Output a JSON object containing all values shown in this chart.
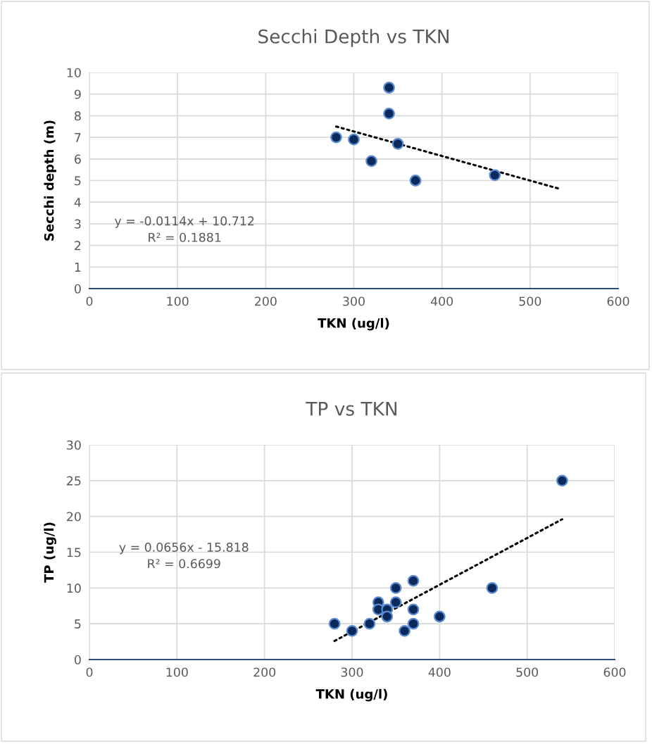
{
  "chart_data": [
    {
      "type": "scatter",
      "title": "Secchi Depth vs TKN",
      "xlabel": "TKN (ug/l)",
      "ylabel": "Secchi depth (m)",
      "xlim": [
        0,
        600
      ],
      "ylim": [
        0,
        10
      ],
      "xticks": [
        0,
        100,
        200,
        300,
        400,
        500,
        600
      ],
      "yticks": [
        0,
        1,
        2,
        3,
        4,
        5,
        6,
        7,
        8,
        9,
        10
      ],
      "grid": true,
      "annotations": [
        "y = -0.0114x + 10.712\nR² = 0.1881"
      ],
      "series": [
        {
          "marker": "circle",
          "color": "#0b2a5c",
          "x": [
            280,
            300,
            320,
            340,
            340,
            350,
            370,
            460
          ],
          "values": [
            7.0,
            6.9,
            5.9,
            9.3,
            8.1,
            6.7,
            5.0,
            5.25
          ]
        },
        {
          "type": "line",
          "marker": "none",
          "color": "#000000",
          "line_style": "dotted",
          "x": [
            280,
            535
          ],
          "values": [
            7.5,
            4.6
          ]
        }
      ]
    },
    {
      "type": "scatter",
      "title": "TP vs TKN",
      "xlabel": "TKN (ug/l)",
      "ylabel": "TP (ug/l)",
      "xlim": [
        0,
        600
      ],
      "ylim": [
        0,
        30
      ],
      "xticks": [
        0,
        100,
        200,
        300,
        400,
        500,
        600
      ],
      "yticks": [
        0,
        5,
        10,
        15,
        20,
        25,
        30
      ],
      "grid": true,
      "annotations": [
        "y = 0.0656x - 15.818\nR² = 0.6699"
      ],
      "series": [
        {
          "marker": "circle",
          "color": "#0b2a5c",
          "x": [
            280,
            300,
            320,
            330,
            330,
            340,
            340,
            350,
            350,
            360,
            370,
            370,
            370,
            400,
            460,
            540
          ],
          "values": [
            5,
            4,
            5,
            8,
            7,
            7,
            6,
            10,
            8,
            4,
            11,
            7,
            5,
            6,
            10,
            25
          ]
        },
        {
          "type": "line",
          "marker": "none",
          "color": "#000000",
          "line_style": "dotted",
          "x": [
            280,
            540
          ],
          "values": [
            2.6,
            19.6
          ]
        }
      ]
    }
  ]
}
